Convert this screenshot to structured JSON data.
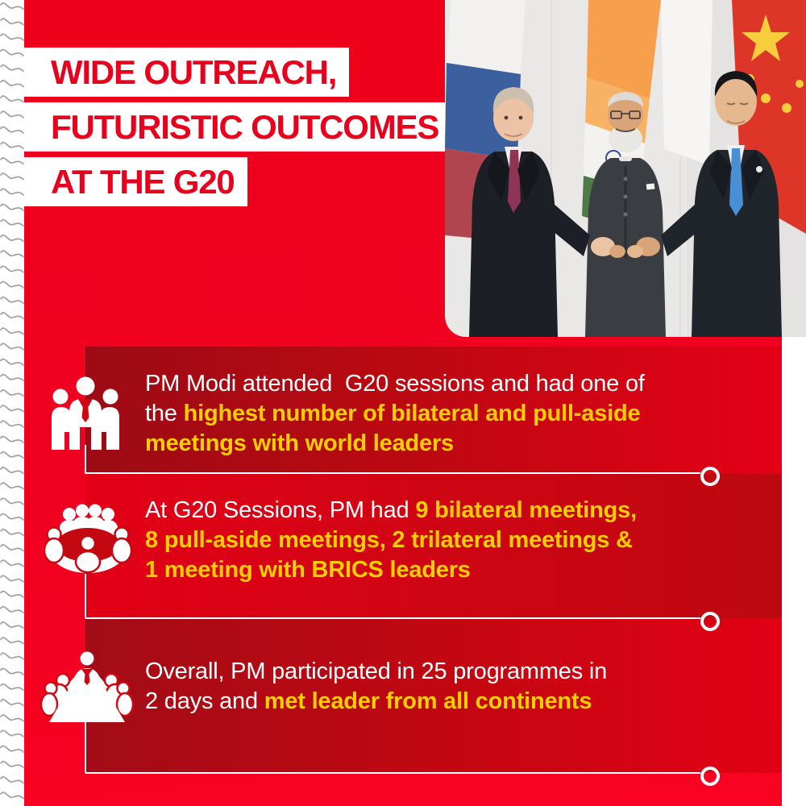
{
  "header": {
    "title_lines": [
      "WIDE OUTREACH,",
      "FUTURISTIC OUTCOMES",
      "AT THE G20"
    ]
  },
  "photo": {
    "description": "PM Modi holding hands with Vladimir Putin and Xi Jinping in front of the Russian, Indian and Chinese flags at the G20"
  },
  "sections": [
    {
      "icon": "delegation-icon",
      "lines": [
        [
          {
            "text": "PM Modi attended  G20 sessions and had one of",
            "style": "white"
          }
        ],
        [
          {
            "text": "the ",
            "style": "white"
          },
          {
            "text": "highest number of bilateral and pull-aside",
            "style": "yellow"
          }
        ],
        [
          {
            "text": "meetings with world leaders",
            "style": "yellow"
          }
        ]
      ]
    },
    {
      "icon": "roundtable-icon",
      "lines": [
        [
          {
            "text": "At G20 Sessions, PM had ",
            "style": "white"
          },
          {
            "text": "9 bilateral meetings,",
            "style": "yellow"
          }
        ],
        [
          {
            "text": "8 pull-aside meetings, 2 trilateral meetings &",
            "style": "yellow"
          }
        ],
        [
          {
            "text": "1 meeting with BRICS leaders",
            "style": "yellow"
          }
        ]
      ]
    },
    {
      "icon": "boardroom-icon",
      "lines": [
        [
          {
            "text": "Overall, PM participated in 25 programmes in",
            "style": "white"
          }
        ],
        [
          {
            "text": "2 days and ",
            "style": "white"
          },
          {
            "text": "met leader from all continents",
            "style": "yellow"
          }
        ]
      ]
    }
  ],
  "colors": {
    "background_red": "#f00120",
    "panel_dark_red": "#9c0b15",
    "accent_yellow": "#ffce00",
    "title_red": "#e8001d",
    "white": "#ffffff"
  }
}
